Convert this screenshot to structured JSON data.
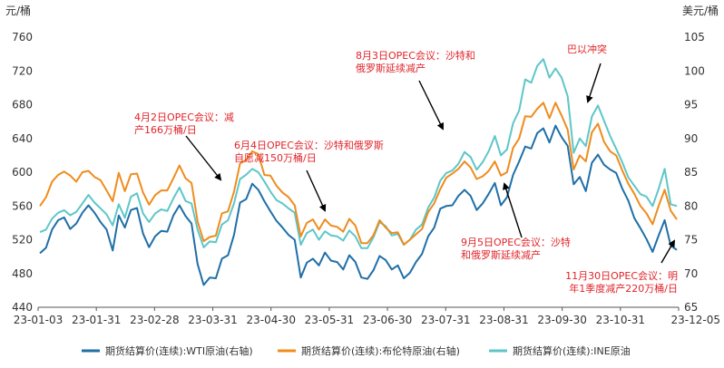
{
  "chart_data": {
    "type": "line",
    "left_axis": {
      "unit": "元/桶",
      "ylim": [
        440,
        760
      ],
      "ticks": [
        440,
        480,
        520,
        560,
        600,
        640,
        680,
        720,
        760
      ]
    },
    "right_axis": {
      "unit": "美元/桶",
      "ylim": [
        65,
        105
      ],
      "ticks": [
        65,
        70,
        75,
        80,
        85,
        90,
        95,
        100,
        105
      ]
    },
    "x_ticks": [
      "23-01-03",
      "23-01-31",
      "23-02-28",
      "23-03-31",
      "23-04-30",
      "23-05-31",
      "23-06-30",
      "23-07-31",
      "23-08-31",
      "23-09-30",
      "23-10-31",
      "23-12-05"
    ],
    "grid": false,
    "legend_position": "bottom",
    "series": [
      {
        "name": "期货结算价(连续):WTI原油(右轴)",
        "axis": "right",
        "color": "#1f6fa8",
        "values": [
          73.0,
          73.8,
          76.5,
          77.9,
          78.3,
          76.6,
          77.4,
          79.0,
          80.1,
          79.0,
          77.6,
          76.5,
          73.4,
          78.6,
          76.8,
          79.4,
          79.7,
          75.9,
          73.9,
          75.5,
          76.3,
          76.2,
          78.6,
          80.1,
          78.5,
          77.4,
          71.4,
          68.3,
          69.4,
          69.3,
          72.2,
          72.7,
          75.7,
          80.5,
          81.0,
          83.3,
          82.4,
          80.7,
          79.2,
          77.8,
          76.8,
          75.7,
          75.0,
          69.4,
          71.6,
          72.2,
          71.2,
          73.1,
          71.9,
          71.7,
          70.6,
          72.7,
          71.7,
          69.4,
          69.2,
          70.5,
          72.6,
          72.0,
          70.6,
          71.2,
          69.3,
          70.1,
          71.7,
          72.9,
          75.5,
          76.8,
          79.6,
          80.0,
          80.1,
          81.5,
          82.4,
          81.5,
          79.4,
          80.4,
          81.8,
          83.4,
          80.1,
          81.3,
          84.6,
          86.6,
          88.8,
          88.5,
          90.8,
          91.5,
          89.4,
          91.9,
          90.2,
          88.9,
          83.2,
          84.3,
          82.2,
          86.4,
          87.6,
          86.1,
          85.4,
          84.9,
          82.6,
          80.8,
          78.2,
          76.7,
          75.1,
          73.2,
          75.6,
          77.9,
          74.1,
          73.5
        ]
      },
      {
        "name": "期货结算价(连续):布伦特原油(右轴)",
        "axis": "right",
        "color": "#ef8c1d",
        "values": [
          80.0,
          81.3,
          83.6,
          84.6,
          85.1,
          84.5,
          83.6,
          85.0,
          85.2,
          84.3,
          83.8,
          82.3,
          80.7,
          84.9,
          82.2,
          84.7,
          84.8,
          82.0,
          80.2,
          81.6,
          82.3,
          82.3,
          84.1,
          86.0,
          84.1,
          83.4,
          77.7,
          74.8,
          75.4,
          75.6,
          78.9,
          79.2,
          82.1,
          86.3,
          86.8,
          88.1,
          87.7,
          84.6,
          84.5,
          83.0,
          82.0,
          81.3,
          80.1,
          75.5,
          77.5,
          78.0,
          76.5,
          78.0,
          77.1,
          76.9,
          76.2,
          78.1,
          77.1,
          74.5,
          74.5,
          75.7,
          77.9,
          76.8,
          76.0,
          76.1,
          74.3,
          75.0,
          75.8,
          76.6,
          79.1,
          80.4,
          82.5,
          84.2,
          84.8,
          85.5,
          86.6,
          85.7,
          84.0,
          84.4,
          85.2,
          86.6,
          84.5,
          85.0,
          88.6,
          90.0,
          93.3,
          93.2,
          94.4,
          95.3,
          93.0,
          95.3,
          93.4,
          91.3,
          85.4,
          87.5,
          86.6,
          90.9,
          92.2,
          89.5,
          88.1,
          87.5,
          85.3,
          83.3,
          81.8,
          80.0,
          78.9,
          77.3,
          80.0,
          82.4,
          79.3,
          78.0
        ]
      },
      {
        "name": "期货结算价(连续):INE原油",
        "axis": "left",
        "color": "#5ec6c8",
        "values": [
          529,
          532,
          545,
          552,
          555,
          549,
          553,
          563,
          573,
          564,
          557,
          550,
          537,
          562,
          546,
          571,
          575,
          551,
          541,
          551,
          556,
          554,
          569,
          582,
          566,
          563,
          532,
          511,
          518,
          517,
          538,
          543,
          563,
          592,
          597,
          604,
          600,
          589,
          577,
          567,
          563,
          557,
          552,
          514,
          528,
          532,
          520,
          530,
          525,
          524,
          519,
          531,
          524,
          510,
          510,
          523,
          541,
          536,
          525,
          527,
          514,
          520,
          532,
          538,
          558,
          570,
          590,
          599,
          602,
          610,
          624,
          618,
          603,
          612,
          625,
          643,
          620,
          627,
          658,
          673,
          710,
          706,
          726,
          734,
          712,
          723,
          712,
          690,
          623,
          640,
          631,
          666,
          679,
          661,
          643,
          628,
          612,
          594,
          584,
          574,
          571,
          560,
          580,
          604,
          562,
          560
        ]
      }
    ],
    "annotations": [
      {
        "lines": [
          "4月2日OPEC会议：减",
          "产166万桶/日"
        ]
      },
      {
        "lines": [
          "6月4日OPEC会议：沙特和俄罗斯",
          "自愿减150万桶/日"
        ]
      },
      {
        "lines": [
          "8月3日OPEC会议：沙特和",
          "俄罗斯延续减产"
        ]
      },
      {
        "lines": [
          "巴以冲突"
        ]
      },
      {
        "lines": [
          "9月5日OPEC会议：沙特",
          "和俄罗斯延续减产"
        ]
      },
      {
        "lines": [
          "11月30日OPEC会议：明",
          "年1季度减产220万桶/日"
        ]
      }
    ]
  }
}
